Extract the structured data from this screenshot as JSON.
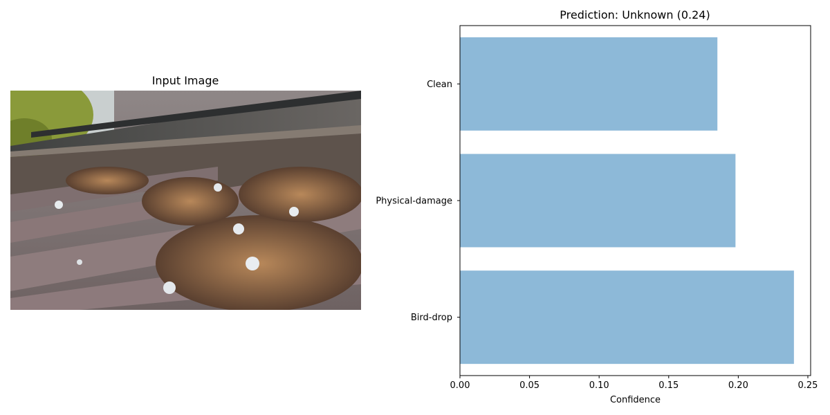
{
  "input_panel": {
    "title": "Input Image"
  },
  "chart_data": {
    "type": "bar",
    "orientation": "horizontal",
    "title": "Prediction: Unknown (0.24)",
    "xlabel": "Confidence",
    "ylabel": "",
    "categories": [
      "Bird-drop",
      "Physical-damage",
      "Clean"
    ],
    "values": [
      0.24,
      0.198,
      0.185
    ],
    "xlim": [
      0,
      0.252
    ],
    "xticks": [
      0.0,
      0.05,
      0.1,
      0.15,
      0.2,
      0.25
    ],
    "xtick_labels": [
      "0.00",
      "0.05",
      "0.10",
      "0.15",
      "0.20",
      "0.25"
    ],
    "bar_color": "#8db9d8",
    "grid": false,
    "legend": "none"
  }
}
